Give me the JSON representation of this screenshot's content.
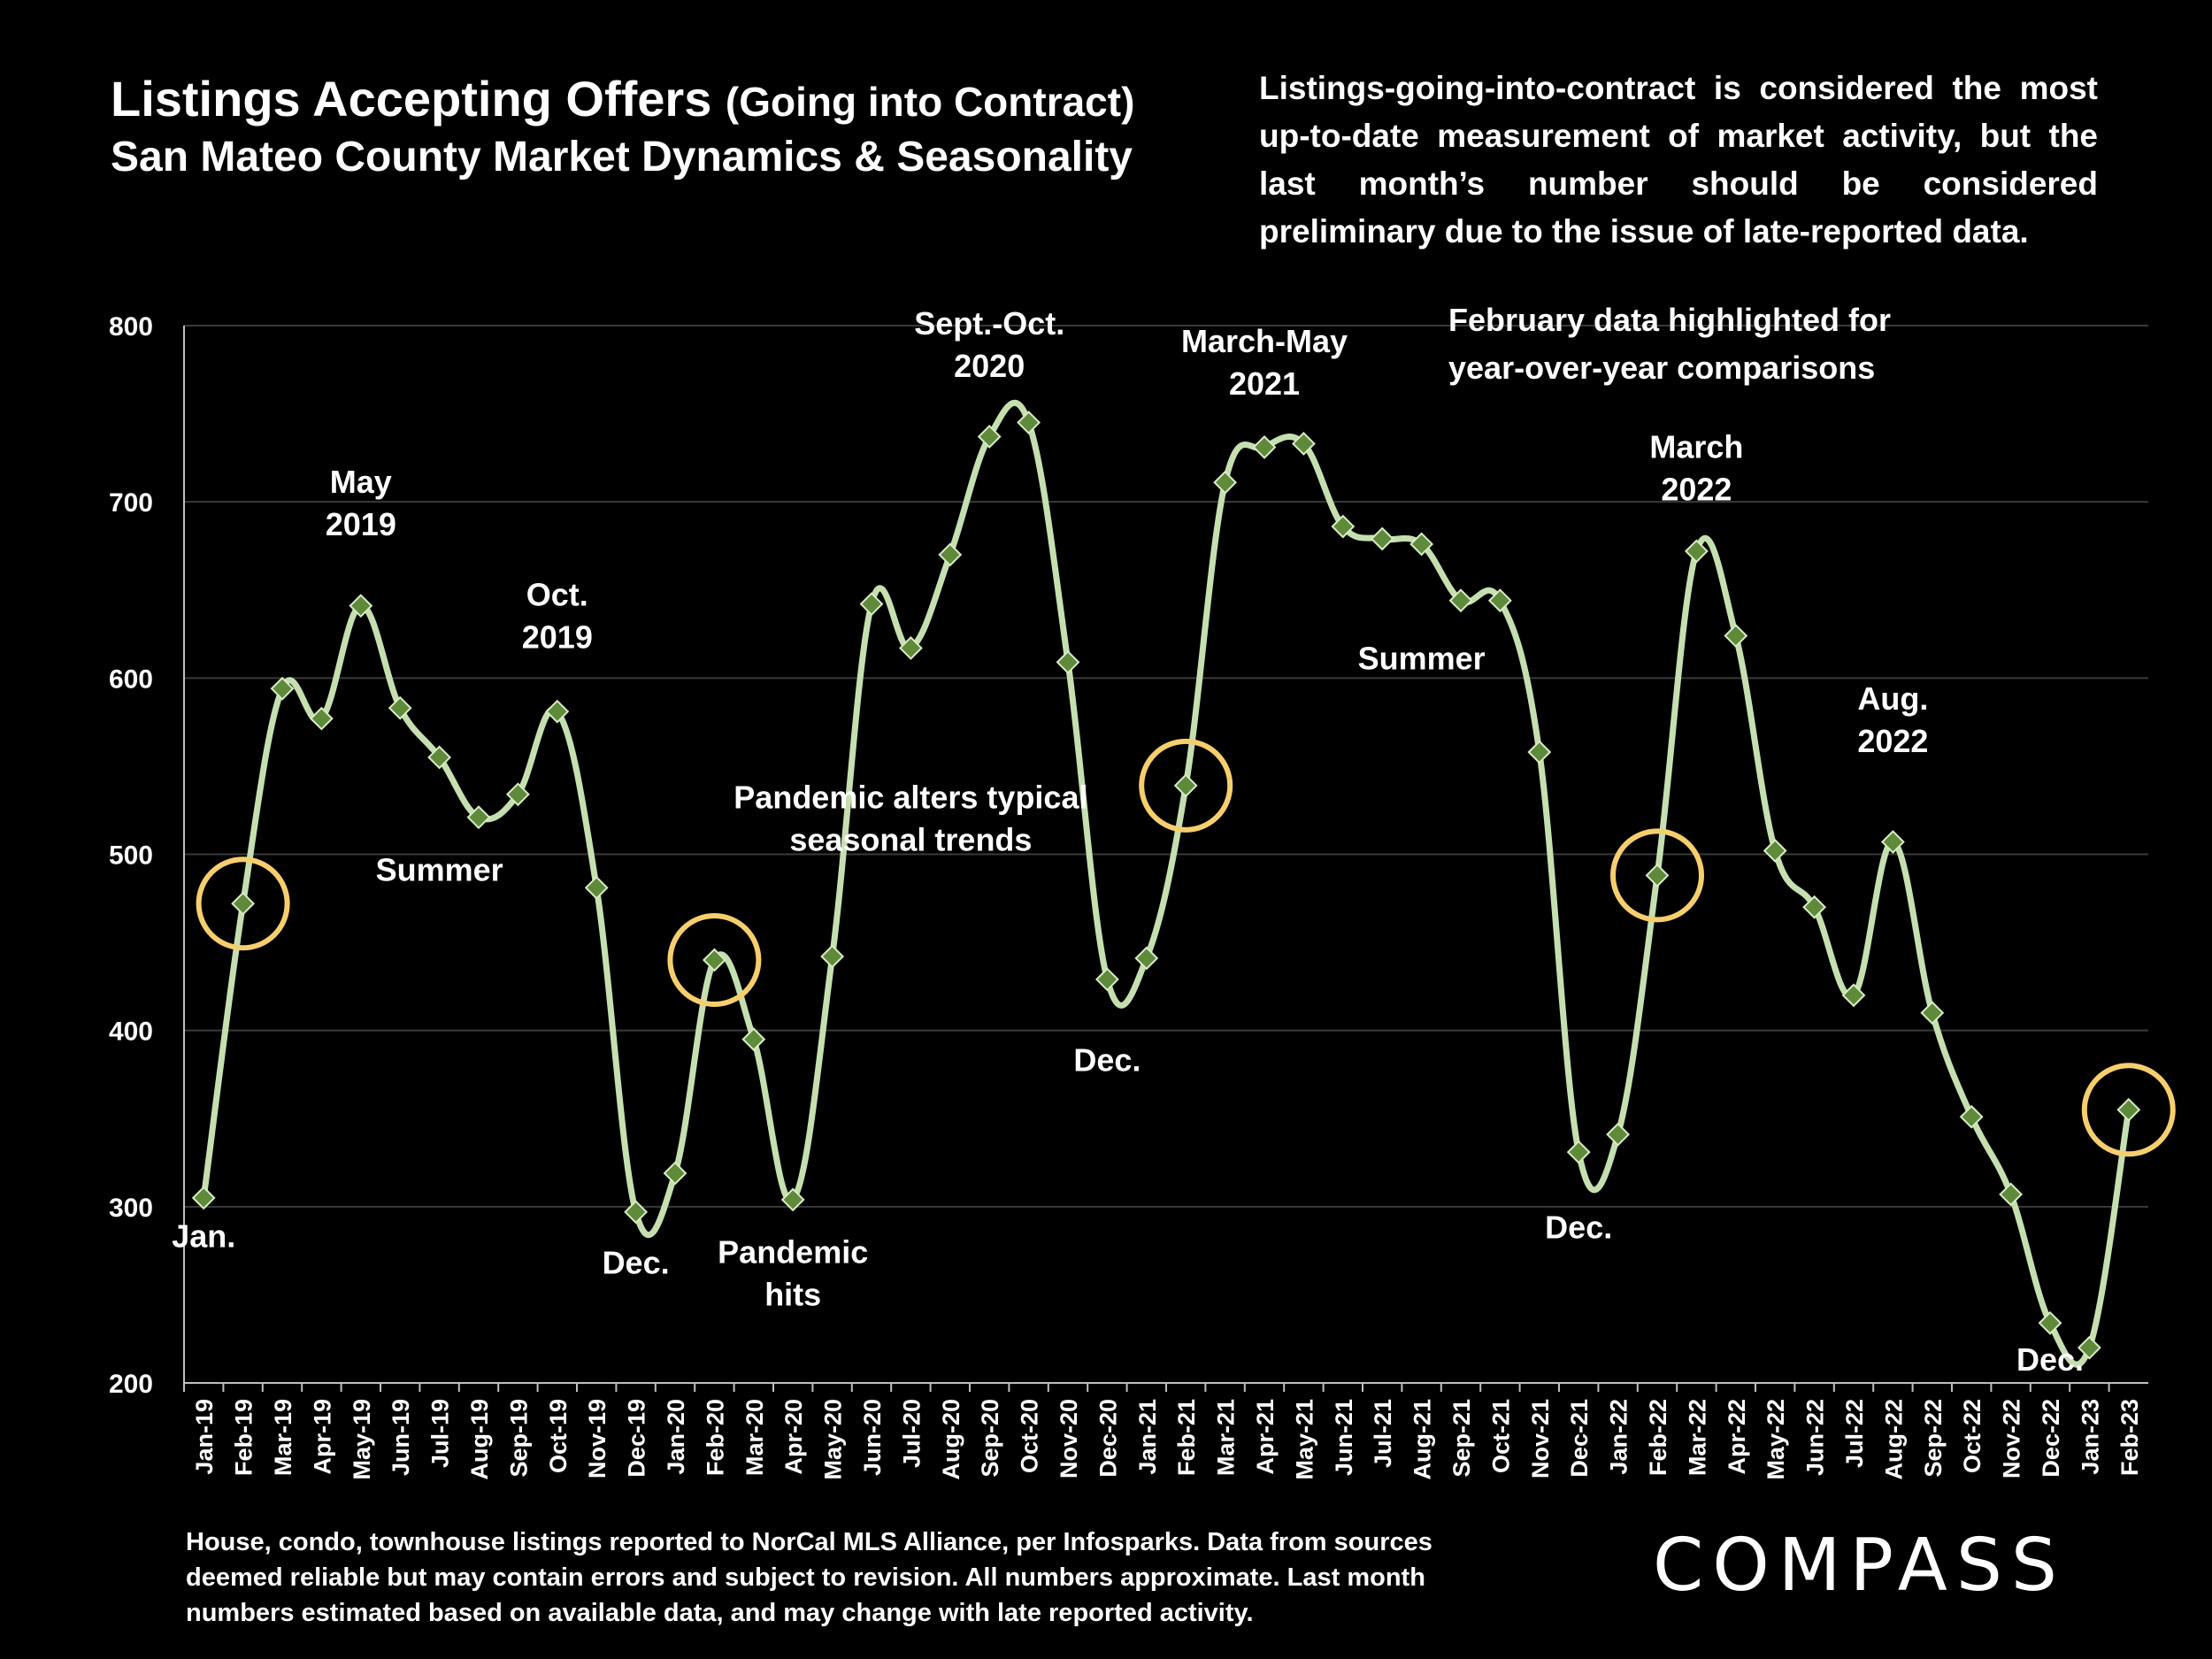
{
  "title_main": "Listings Accepting Offers",
  "title_paren": "(Going into Contract)",
  "subtitle": "San Mateo County Market Dynamics & Seasonality",
  "note": "Listings-going-into-contract is considered the most up-to-date measurement of market activity, but the last month’s number should be considered preliminary due to the issue of late-reported data.",
  "footer": "House, condo, townhouse listings reported to NorCal MLS Alliance, per Infosparks. Data from sources deemed reliable but may contain errors and subject to revision. All numbers approximate. Last month numbers estimated based on available data, and may change with late reported activity.",
  "logo": "COMPASS",
  "chart_data": {
    "type": "line",
    "categories": [
      "Jan-19",
      "Feb-19",
      "Mar-19",
      "Apr-19",
      "May-19",
      "Jun-19",
      "Jul-19",
      "Aug-19",
      "Sep-19",
      "Oct-19",
      "Nov-19",
      "Dec-19",
      "Jan-20",
      "Feb-20",
      "Mar-20",
      "Apr-20",
      "May-20",
      "Jun-20",
      "Jul-20",
      "Aug-20",
      "Sep-20",
      "Oct-20",
      "Nov-20",
      "Dec-20",
      "Jan-21",
      "Feb-21",
      "Mar-21",
      "Apr-21",
      "May-21",
      "Jun-21",
      "Jul-21",
      "Aug-21",
      "Sep-21",
      "Oct-21",
      "Nov-21",
      "Dec-21",
      "Jan-22",
      "Feb-22",
      "Mar-22",
      "Apr-22",
      "May-22",
      "Jun-22",
      "Jul-22",
      "Aug-22",
      "Sep-22",
      "Oct-22",
      "Nov-22",
      "Dec-22",
      "Jan-23",
      "Feb-23"
    ],
    "values": [
      305,
      472,
      594,
      577,
      641,
      583,
      555,
      521,
      534,
      581,
      481,
      297,
      319,
      440,
      395,
      304,
      442,
      642,
      617,
      670,
      737,
      745,
      609,
      429,
      441,
      539,
      711,
      731,
      733,
      686,
      679,
      676,
      644,
      644,
      558,
      331,
      341,
      488,
      672,
      624,
      502,
      470,
      420,
      507,
      410,
      351,
      307,
      234,
      220,
      355
    ],
    "highlighted": [
      "Feb-19",
      "Feb-20",
      "Feb-21",
      "Feb-22",
      "Feb-23"
    ],
    "ylim": [
      200,
      800
    ],
    "yticks": [
      200,
      300,
      400,
      500,
      600,
      700,
      800
    ],
    "grid": true,
    "line_color": "#c6dfb0",
    "marker_color": "#5e8a3a",
    "highlight_color": "#f6cf6d",
    "highlight_note": [
      "February data highlighted for",
      "year-over-year comparisons"
    ],
    "annotations": [
      {
        "lines": [
          "Jan."
        ],
        "at": "Jan-19",
        "y": 277,
        "anchor": "middle"
      },
      {
        "lines": [
          "May",
          "2019"
        ],
        "at": "May-19",
        "y": 705,
        "anchor": "middle"
      },
      {
        "lines": [
          "Summer"
        ],
        "at": "Jul-19",
        "y": 485,
        "anchor": "middle"
      },
      {
        "lines": [
          "Oct.",
          "2019"
        ],
        "at": "Oct-19",
        "y": 641,
        "anchor": "middle"
      },
      {
        "lines": [
          "Dec."
        ],
        "at": "Dec-19",
        "y": 262,
        "anchor": "middle"
      },
      {
        "lines": [
          "Pandemic",
          "hits"
        ],
        "at": "Apr-20",
        "y": 268,
        "anchor": "middle"
      },
      {
        "lines": [
          "Pandemic alters typical",
          "seasonal trends"
        ],
        "at": "Jul-20",
        "y": 526,
        "anchor": "middle"
      },
      {
        "lines": [
          "Sept.-Oct.",
          "2020"
        ],
        "at": "Sep-20",
        "y": 795,
        "anchor": "middle"
      },
      {
        "lines": [
          "Dec."
        ],
        "at": "Dec-20",
        "y": 377,
        "anchor": "middle"
      },
      {
        "lines": [
          "March-May",
          "2021"
        ],
        "at": "Apr-21",
        "y": 785,
        "anchor": "middle"
      },
      {
        "lines": [
          "Summer"
        ],
        "at": "Aug-21",
        "y": 605,
        "anchor": "middle"
      },
      {
        "lines": [
          "March",
          "2022"
        ],
        "at": "Mar-22",
        "y": 725,
        "anchor": "middle"
      },
      {
        "lines": [
          "Dec."
        ],
        "at": "Dec-21",
        "y": 282,
        "anchor": "middle"
      },
      {
        "lines": [
          "Aug.",
          "2022"
        ],
        "at": "Aug-22",
        "y": 582,
        "anchor": "middle"
      },
      {
        "lines": [
          "Dec."
        ],
        "at": "Dec-22",
        "y": 207,
        "anchor": "middle"
      }
    ]
  }
}
